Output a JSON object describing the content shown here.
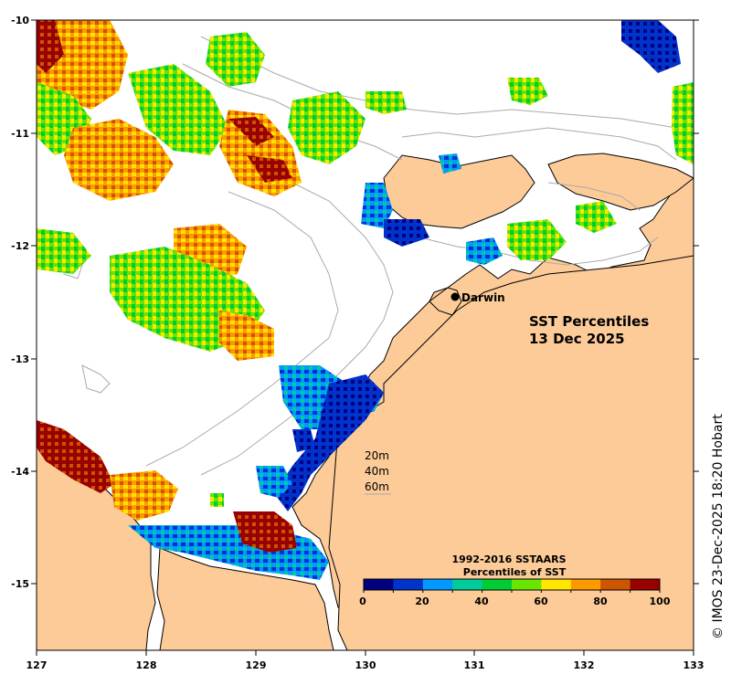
{
  "map": {
    "title_line1": "SST Percentiles",
    "title_line2": "13 Dec 2025",
    "place_label": "Darwin",
    "copyright": "© IMOS 23-Dec-2025 18:20 Hobart",
    "x_ticks": [
      "127",
      "128",
      "129",
      "130",
      "131",
      "132",
      "133"
    ],
    "y_ticks": [
      "-10",
      "-11",
      "-12",
      "-13",
      "-14",
      "-15"
    ],
    "depth_contours": [
      "20m",
      "40m",
      "60m"
    ],
    "colors": {
      "land": "#fccb98",
      "coast": "#000000",
      "contour": "#aaaaaa"
    }
  },
  "legend": {
    "title_line1": "1992-2016 SSTAARS",
    "title_line2": "Percentiles of SST",
    "tick_labels": [
      "0",
      "20",
      "40",
      "60",
      "80",
      "100"
    ],
    "colors": [
      "#00007f",
      "#0033cc",
      "#0099ff",
      "#00cc99",
      "#00cc33",
      "#66e600",
      "#ffe600",
      "#ff9900",
      "#cc5500",
      "#990000"
    ]
  }
}
